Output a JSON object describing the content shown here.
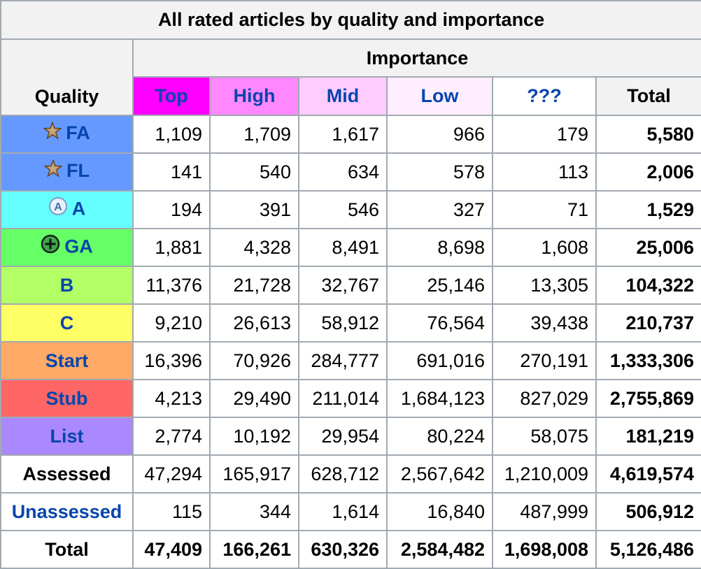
{
  "caption": "All rated articles by quality and importance",
  "importance_header": "Importance",
  "quality_header": "Quality",
  "columns": [
    {
      "label": "Top",
      "color": "#ff00ff"
    },
    {
      "label": "High",
      "color": "#ff88ff"
    },
    {
      "label": "Mid",
      "color": "#ffccff"
    },
    {
      "label": "Low",
      "color": "#ffeeff"
    },
    {
      "label": "???",
      "color": "#ffffff"
    }
  ],
  "total_header": "Total",
  "rows": [
    {
      "quality": "FA",
      "icon": "featured-star-icon",
      "color": "#6699ff",
      "link": true,
      "values": [
        "1,109",
        "1,709",
        "1,617",
        "966",
        "179"
      ],
      "total": "5,580"
    },
    {
      "quality": "FL",
      "icon": "featured-star-icon",
      "color": "#6699ff",
      "link": true,
      "values": [
        "141",
        "540",
        "634",
        "578",
        "113"
      ],
      "total": "2,006"
    },
    {
      "quality": "A",
      "icon": "a-class-icon",
      "color": "#66ffff",
      "link": true,
      "values": [
        "194",
        "391",
        "546",
        "327",
        "71"
      ],
      "total": "1,529"
    },
    {
      "quality": "GA",
      "icon": "good-article-plus-icon",
      "color": "#66ff66",
      "link": true,
      "values": [
        "1,881",
        "4,328",
        "8,491",
        "8,698",
        "1,608"
      ],
      "total": "25,006"
    },
    {
      "quality": "B",
      "icon": "",
      "color": "#b2ff66",
      "link": true,
      "values": [
        "11,376",
        "21,728",
        "32,767",
        "25,146",
        "13,305"
      ],
      "total": "104,322"
    },
    {
      "quality": "C",
      "icon": "",
      "color": "#ffff66",
      "link": true,
      "values": [
        "9,210",
        "26,613",
        "58,912",
        "76,564",
        "39,438"
      ],
      "total": "210,737"
    },
    {
      "quality": "Start",
      "icon": "",
      "color": "#ffaa66",
      "link": true,
      "values": [
        "16,396",
        "70,926",
        "284,777",
        "691,016",
        "270,191"
      ],
      "total": "1,333,306"
    },
    {
      "quality": "Stub",
      "icon": "",
      "color": "#ff6666",
      "link": true,
      "values": [
        "4,213",
        "29,490",
        "211,014",
        "1,684,123",
        "827,029"
      ],
      "total": "2,755,869"
    },
    {
      "quality": "List",
      "icon": "",
      "color": "#aa88ff",
      "link": true,
      "values": [
        "2,774",
        "10,192",
        "29,954",
        "80,224",
        "58,075"
      ],
      "total": "181,219"
    },
    {
      "quality": "Assessed",
      "icon": "",
      "color": "#ffffff",
      "link": false,
      "values": [
        "47,294",
        "165,917",
        "628,712",
        "2,567,642",
        "1,210,009"
      ],
      "total": "4,619,574"
    },
    {
      "quality": "Unassessed",
      "icon": "",
      "color": "#ffffff",
      "link": true,
      "values": [
        "115",
        "344",
        "1,614",
        "16,840",
        "487,999"
      ],
      "total": "506,912"
    },
    {
      "quality": "Total",
      "icon": "",
      "color": "#ffffff",
      "link": false,
      "values": [
        "47,409",
        "166,261",
        "630,326",
        "2,584,482",
        "1,698,008"
      ],
      "total": "5,126,486"
    }
  ]
}
